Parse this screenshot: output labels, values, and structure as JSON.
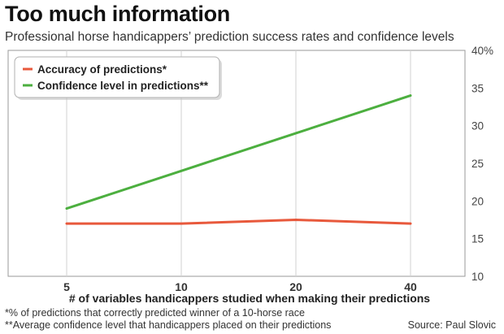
{
  "title": "Too much information",
  "subtitle": "Professional horse handicappers’ prediction success rates and confidence levels",
  "chart_data": {
    "type": "line",
    "x": [
      5,
      10,
      20,
      40
    ],
    "x_tick_labels": [
      "5",
      "10",
      "20",
      "40"
    ],
    "xlabel": "# of variables handicappers studied when making their predictions",
    "ylabel": "",
    "ylim": [
      10,
      40
    ],
    "y_ticks": [
      10,
      15,
      20,
      25,
      30,
      35,
      40
    ],
    "y_tick_labels": [
      "10",
      "15",
      "20",
      "25",
      "30",
      "35",
      "40%"
    ],
    "y_axis_side": "right",
    "grid": "vertical",
    "legend_position": "top-left",
    "series": [
      {
        "name": "Accuracy of predictions*",
        "color": "#e8593c",
        "values": [
          17,
          17,
          17.5,
          17
        ]
      },
      {
        "name": "Confidence level in predictions**",
        "color": "#4caf3f",
        "values": [
          19,
          24,
          29,
          34
        ]
      }
    ]
  },
  "footnotes": [
    "*% of predictions that correctly predicted winner of a 10-horse race",
    "**Average confidence level that handicappers placed on their predictions"
  ],
  "source": "Source: Paul Slovic"
}
